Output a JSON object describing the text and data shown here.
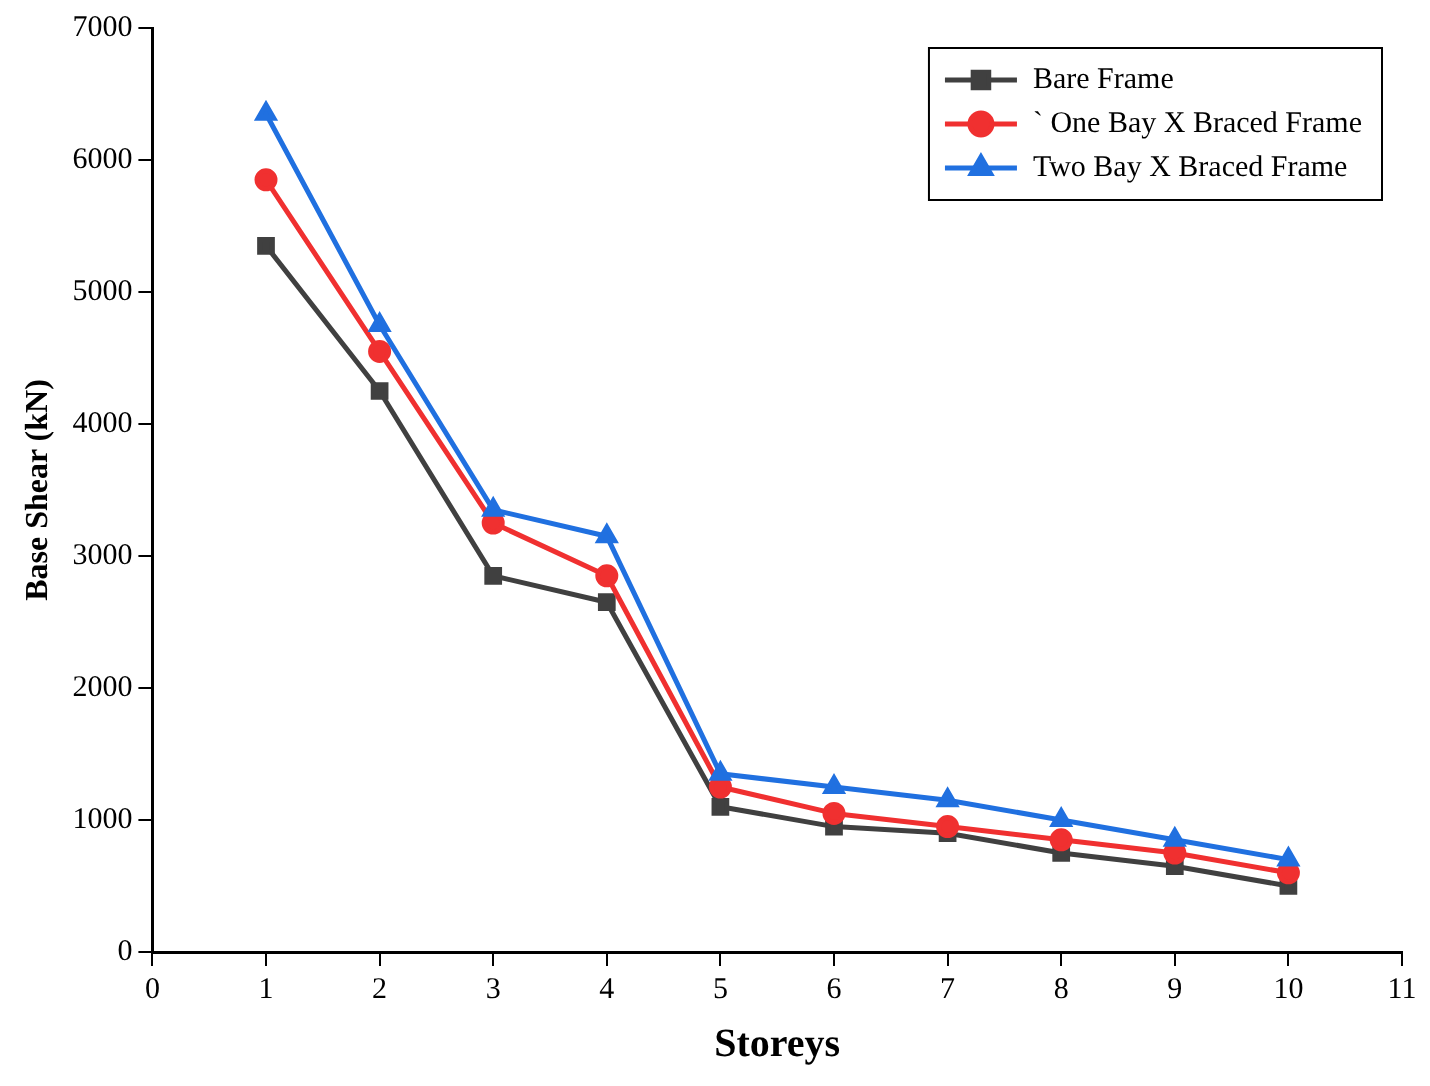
{
  "chart_data": {
    "type": "line",
    "xlabel": "Storeys",
    "ylabel": "Base Shear (kN)",
    "x": [
      1,
      2,
      3,
      4,
      5,
      6,
      7,
      8,
      9,
      10
    ],
    "xlim": [
      0,
      11
    ],
    "xticks": [
      0,
      1,
      2,
      3,
      4,
      5,
      6,
      7,
      8,
      9,
      10,
      11
    ],
    "ylim": [
      0,
      7000
    ],
    "yticks": [
      0,
      1000,
      2000,
      3000,
      4000,
      5000,
      6000,
      7000
    ],
    "grid": false,
    "legend": "top right",
    "line_style": "solid",
    "series": [
      {
        "name": "Bare Frame",
        "color": "#404040",
        "marker": "square",
        "values": [
          5350,
          4250,
          2850,
          2650,
          1100,
          950,
          900,
          750,
          650,
          500
        ]
      },
      {
        "name": "` One Bay X Braced Frame",
        "color": "#f03030",
        "marker": "circle",
        "values": [
          5850,
          4550,
          3250,
          2850,
          1250,
          1050,
          950,
          850,
          750,
          600
        ]
      },
      {
        "name": "Two Bay X Braced Frame",
        "color": "#2070e0",
        "marker": "triangle",
        "values": [
          6350,
          4750,
          3350,
          3150,
          1350,
          1250,
          1150,
          1000,
          850,
          700
        ]
      }
    ]
  }
}
